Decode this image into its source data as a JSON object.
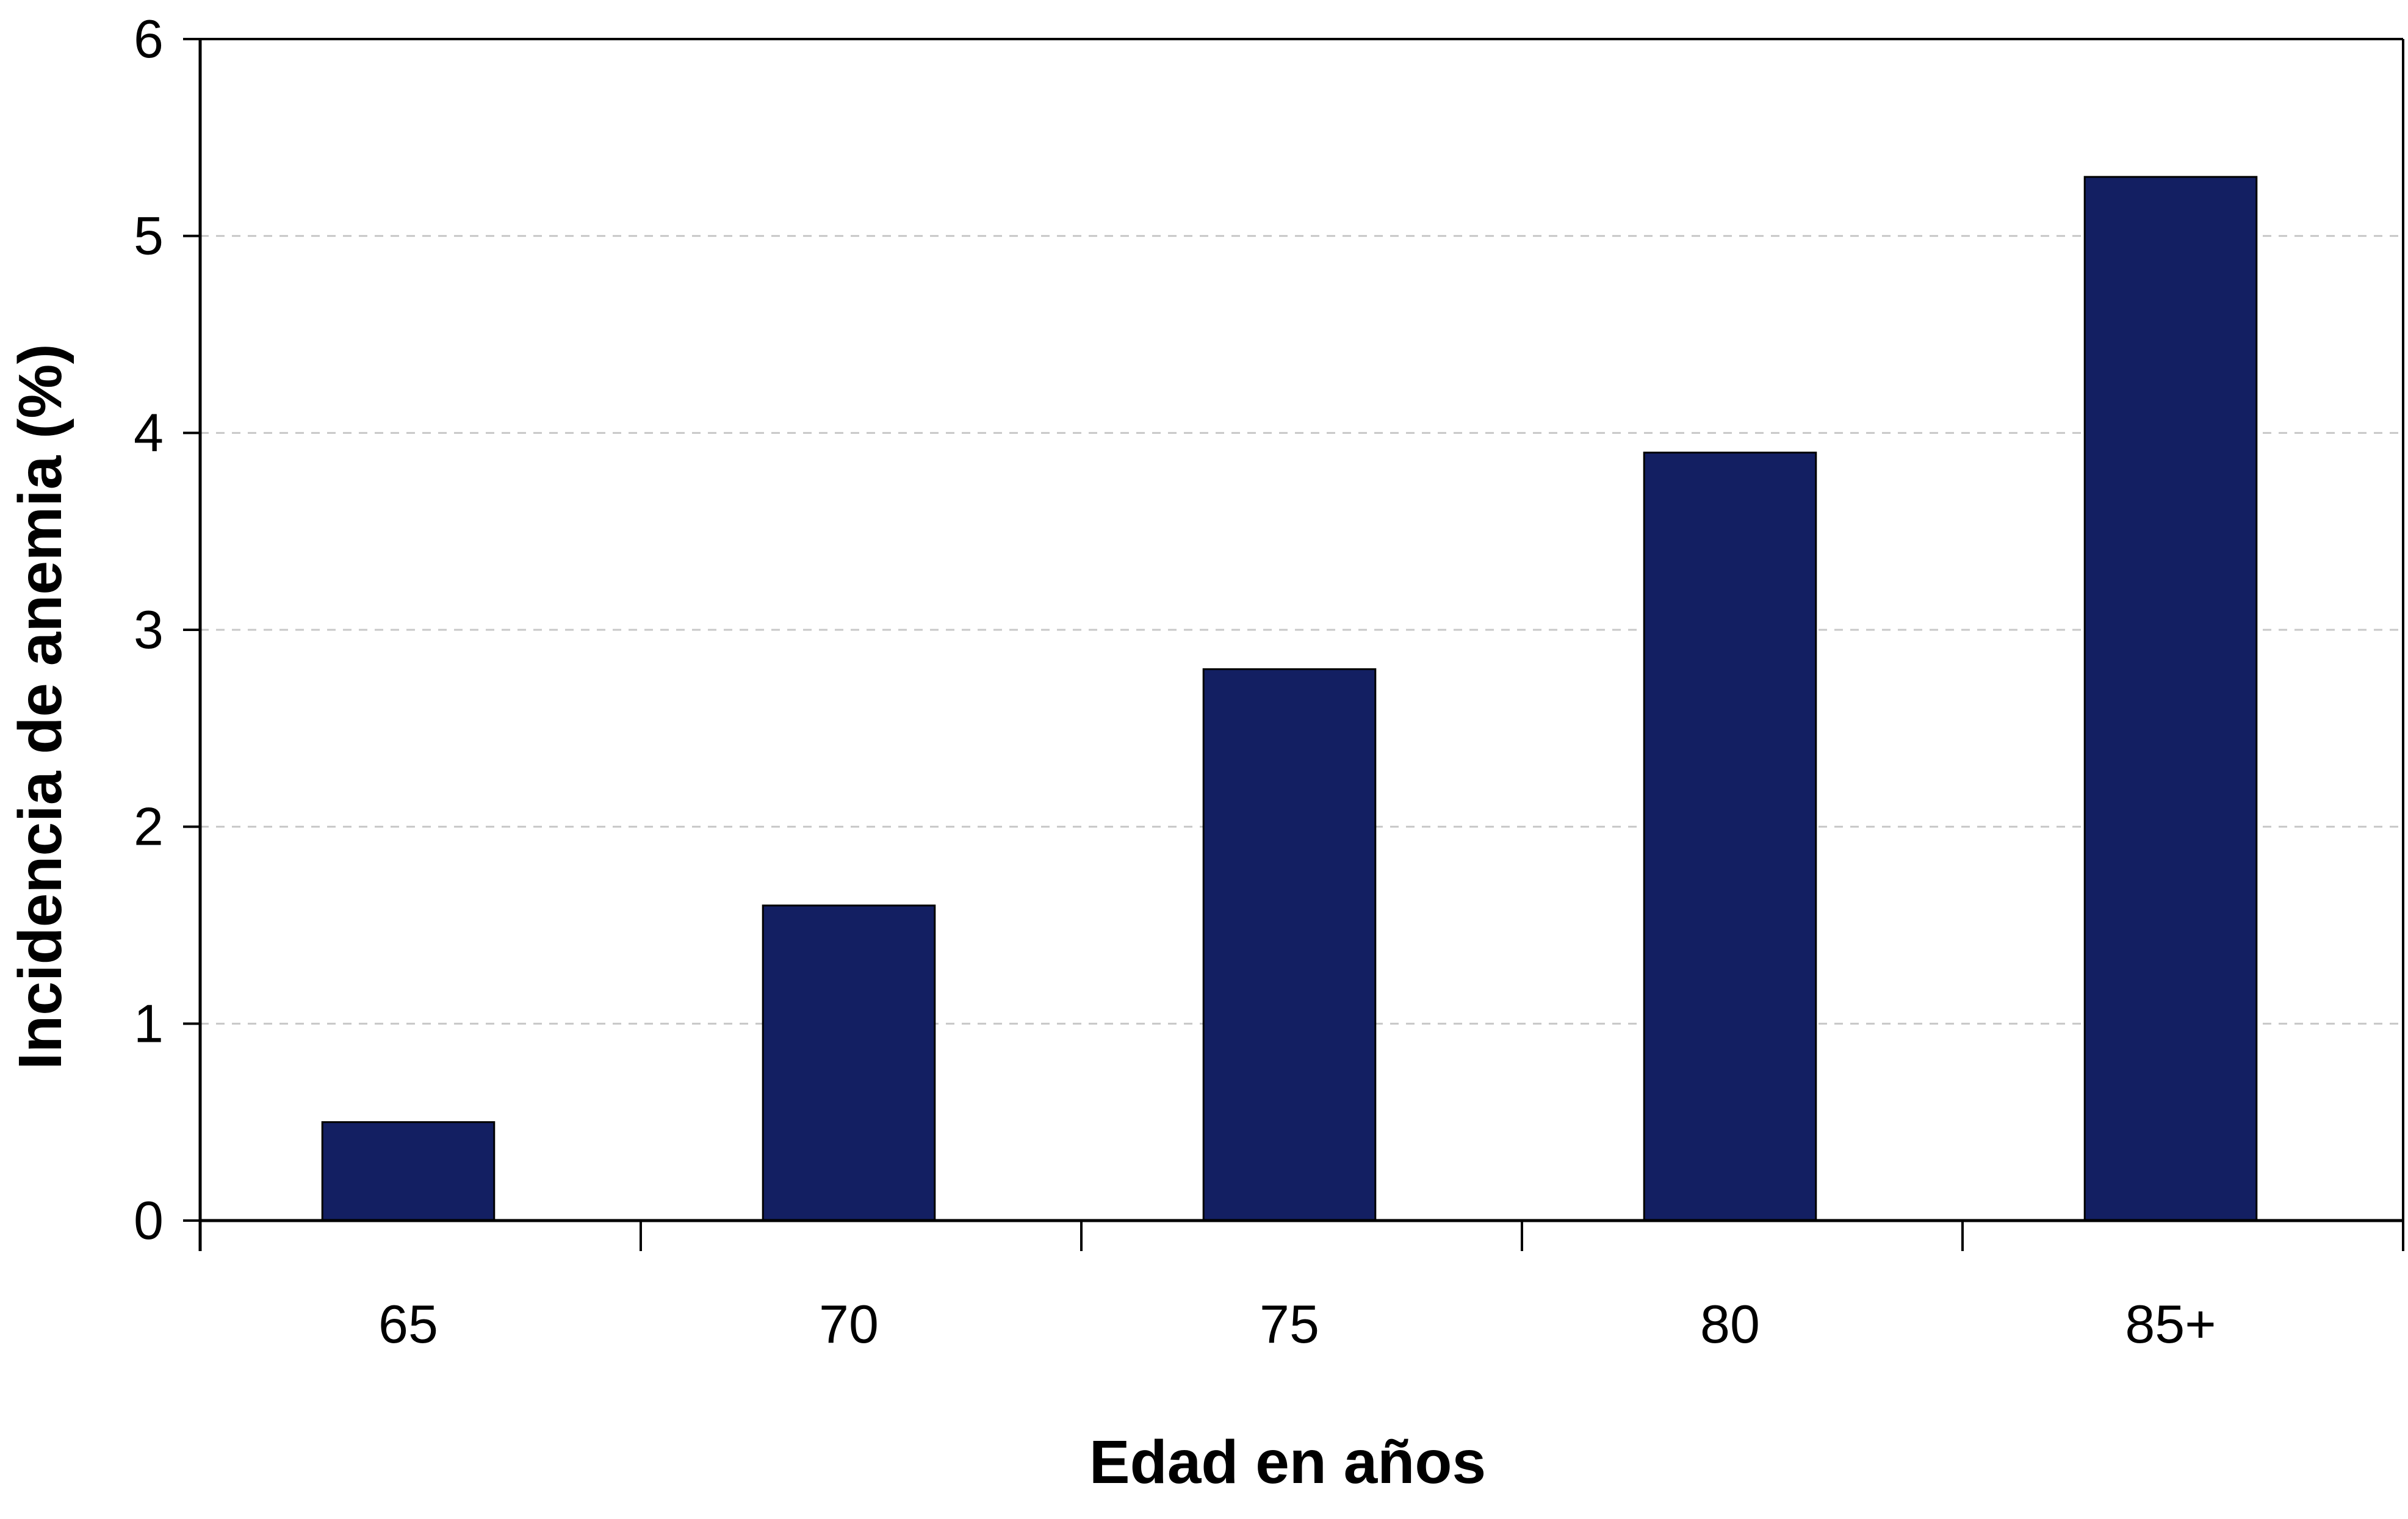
{
  "chart_data": {
    "type": "bar",
    "title": "",
    "xlabel": "Edad en años",
    "ylabel": "Incidencia de anemia (%)",
    "categories": [
      "65",
      "70",
      "75",
      "80",
      "85+"
    ],
    "values": [
      0.5,
      1.6,
      2.8,
      3.9,
      5.3
    ],
    "ylim": [
      0,
      6
    ],
    "yticks": [
      "0",
      "1",
      "2",
      "3",
      "4",
      "5",
      "6"
    ],
    "grid": "horizontal-dashed",
    "legend": "none",
    "colors": {
      "bar": "#131f62",
      "axis": "#000000",
      "grid": "#c8c8c8"
    }
  }
}
